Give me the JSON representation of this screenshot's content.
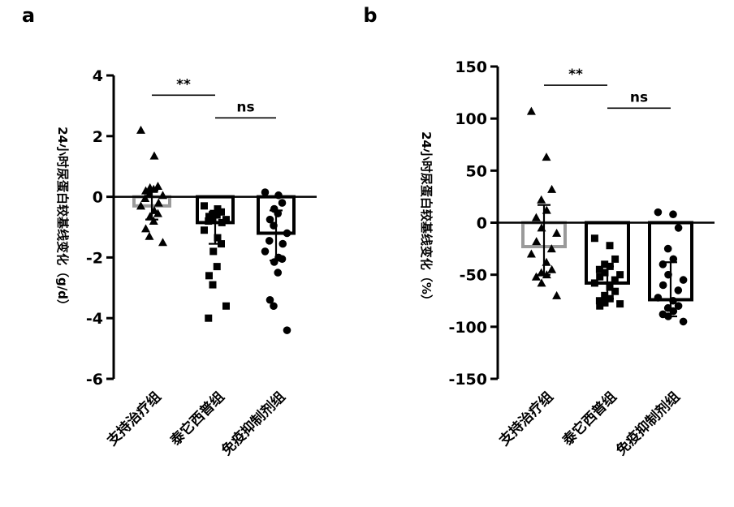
{
  "chart_data": [
    {
      "type": "bar",
      "panel_label": "a",
      "ylabel": "24小时尿蛋白较基线变化（g/d）",
      "categories": [
        "支持治疗组",
        "泰它西普组",
        "免疫抑制剂组"
      ],
      "ylim": [
        -6,
        4
      ],
      "yticks": [
        "4",
        "2",
        "0",
        "-2",
        "-4",
        "-6"
      ],
      "ytick_values": [
        4,
        2,
        0,
        -2,
        -4,
        -6
      ],
      "bar_values": [
        -0.3,
        -0.85,
        -1.2
      ],
      "error_bars": [
        {
          "low": -0.75,
          "high": 0.2
        },
        {
          "low": -1.55,
          "high": -0.5
        },
        {
          "low": -2.1,
          "high": -0.45
        }
      ],
      "bar_colors": [
        "#9a9a9a",
        "#000000",
        "#000000"
      ],
      "markers": [
        "triangle",
        "square",
        "circle"
      ],
      "points": [
        [
          2.2,
          1.35,
          0.35,
          0.3,
          0.25,
          0.2,
          0.1,
          0.05,
          -0.05,
          -0.2,
          -0.3,
          -0.45,
          -0.55,
          -0.65,
          -0.8,
          -1.05,
          -1.3,
          -1.5
        ],
        [
          -0.3,
          -0.4,
          -0.5,
          -0.55,
          -0.6,
          -0.65,
          -0.7,
          -0.75,
          -0.8,
          -0.85,
          -1.1,
          -1.35,
          -1.55,
          -1.8,
          -2.3,
          -2.6,
          -2.9,
          -3.6,
          -4.0
        ],
        [
          0.15,
          0.05,
          -0.2,
          -0.4,
          -0.55,
          -0.75,
          -0.95,
          -1.2,
          -1.45,
          -1.55,
          -1.8,
          -2.0,
          -2.05,
          -2.15,
          -2.5,
          -3.4,
          -3.6,
          -4.4
        ]
      ],
      "significance": [
        {
          "from": 0,
          "to": 1,
          "label": "**",
          "y": 3.35
        },
        {
          "from": 1,
          "to": 2,
          "label": "ns",
          "y": 2.6
        }
      ]
    },
    {
      "type": "bar",
      "panel_label": "b",
      "ylabel": "24小时尿蛋白较基线变化（%）",
      "categories": [
        "支持治疗组",
        "泰它西普组",
        "免疫抑制剂组"
      ],
      "ylim": [
        -150,
        150
      ],
      "yticks": [
        "150",
        "100",
        "50",
        "0",
        "-50",
        "-100",
        "-150"
      ],
      "ytick_values": [
        150,
        100,
        50,
        0,
        -50,
        -100,
        -150
      ],
      "bar_values": [
        -23,
        -58,
        -74
      ],
      "error_bars": [
        {
          "low": -50,
          "high": 17
        },
        {
          "low": -73,
          "high": -42
        },
        {
          "low": -90,
          "high": -38
        }
      ],
      "bar_colors": [
        "#9a9a9a",
        "#000000",
        "#000000"
      ],
      "markers": [
        "triangle",
        "square",
        "circle"
      ],
      "points": [
        [
          107,
          63,
          32,
          22,
          12,
          5,
          -5,
          -10,
          -18,
          -25,
          -30,
          -38,
          -45,
          -48,
          -50,
          -52,
          -58,
          -70
        ],
        [
          -15,
          -22,
          -35,
          -40,
          -42,
          -45,
          -48,
          -50,
          -52,
          -55,
          -58,
          -62,
          -66,
          -70,
          -73,
          -75,
          -77,
          -78,
          -80
        ],
        [
          10,
          8,
          -5,
          -25,
          -35,
          -40,
          -50,
          -55,
          -60,
          -65,
          -72,
          -75,
          -80,
          -82,
          -85,
          -88,
          -90,
          -95
        ]
      ],
      "significance": [
        {
          "from": 0,
          "to": 1,
          "label": "**",
          "y": 132
        },
        {
          "from": 1,
          "to": 2,
          "label": "ns",
          "y": 110
        }
      ]
    }
  ]
}
